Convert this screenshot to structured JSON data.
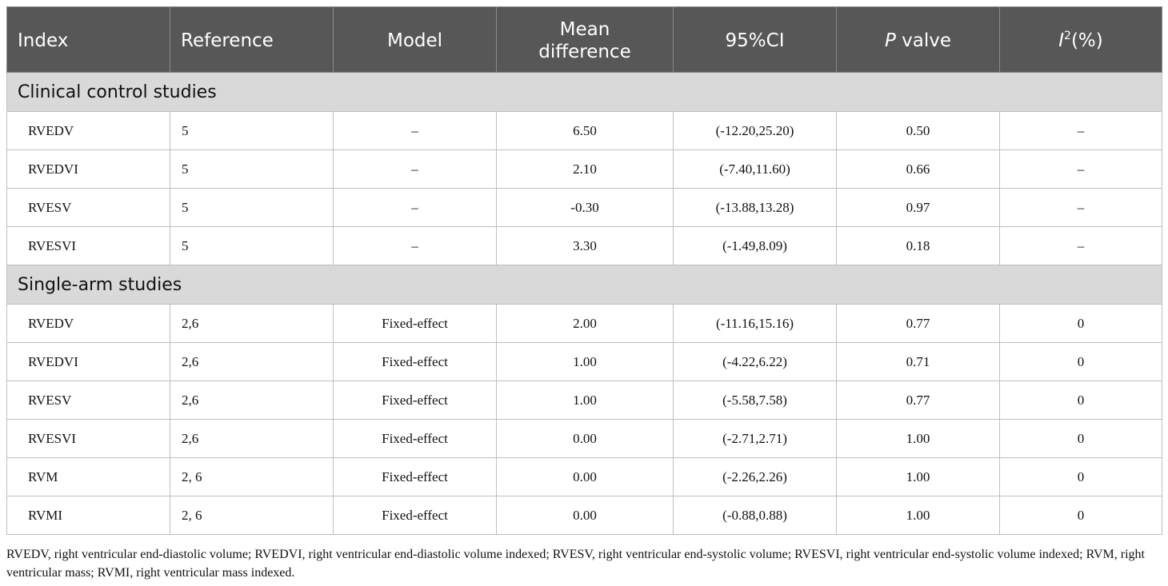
{
  "table": {
    "headers": {
      "index": "Index",
      "reference": "Reference",
      "model": "Model",
      "mean_difference_line1": "Mean",
      "mean_difference_line2": "difference",
      "ci": "95%CI",
      "p_value_italic": "P",
      "p_value_rest": " valve",
      "i2_italic": "I",
      "i2_sup": "2",
      "i2_rest": "(%)"
    },
    "sections": [
      {
        "title": "Clinical control studies",
        "rows": [
          {
            "index": "RVEDV",
            "reference": "5",
            "model": "–",
            "mean_difference": "6.50",
            "ci": "(-12.20,25.20)",
            "p_value": "0.50",
            "i2": "–"
          },
          {
            "index": "RVEDVI",
            "reference": "5",
            "model": "–",
            "mean_difference": "2.10",
            "ci": "(-7.40,11.60)",
            "p_value": "0.66",
            "i2": "–"
          },
          {
            "index": "RVESV",
            "reference": "5",
            "model": "–",
            "mean_difference": "-0.30",
            "ci": "(-13.88,13.28)",
            "p_value": "0.97",
            "i2": "–"
          },
          {
            "index": "RVESVI",
            "reference": "5",
            "model": "–",
            "mean_difference": "3.30",
            "ci": "(-1.49,8.09)",
            "p_value": "0.18",
            "i2": "–"
          }
        ]
      },
      {
        "title": "Single-arm studies",
        "rows": [
          {
            "index": "RVEDV",
            "reference": "2,6",
            "model": "Fixed-effect",
            "mean_difference": "2.00",
            "ci": "(-11.16,15.16)",
            "p_value": "0.77",
            "i2": "0"
          },
          {
            "index": "RVEDVI",
            "reference": "2,6",
            "model": "Fixed-effect",
            "mean_difference": "1.00",
            "ci": "(-4.22,6.22)",
            "p_value": "0.71",
            "i2": "0"
          },
          {
            "index": "RVESV",
            "reference": "2,6",
            "model": "Fixed-effect",
            "mean_difference": "1.00",
            "ci": "(-5.58,7.58)",
            "p_value": "0.77",
            "i2": "0"
          },
          {
            "index": "RVESVI",
            "reference": "2,6",
            "model": "Fixed-effect",
            "mean_difference": "0.00",
            "ci": "(-2.71,2.71)",
            "p_value": "1.00",
            "i2": "0"
          },
          {
            "index": "RVM",
            "reference": "2, 6",
            "model": "Fixed-effect",
            "mean_difference": "0.00",
            "ci": "(-2.26,2.26)",
            "p_value": "1.00",
            "i2": "0"
          },
          {
            "index": "RVMI",
            "reference": "2, 6",
            "model": "Fixed-effect",
            "mean_difference": "0.00",
            "ci": "(-0.88,0.88)",
            "p_value": "1.00",
            "i2": "0"
          }
        ]
      }
    ]
  },
  "footnote": "RVEDV, right ventricular end-diastolic volume; RVEDVI, right ventricular end-diastolic volume indexed; RVESV, right ventricular end-systolic volume; RVESVI, right ventricular end-systolic volume indexed; RVM, right ventricular mass; RVMI, right ventricular mass indexed.",
  "colors": {
    "header_bg": "#575757",
    "section_bg": "#d9d9d9",
    "border": "#bfbfbf"
  }
}
